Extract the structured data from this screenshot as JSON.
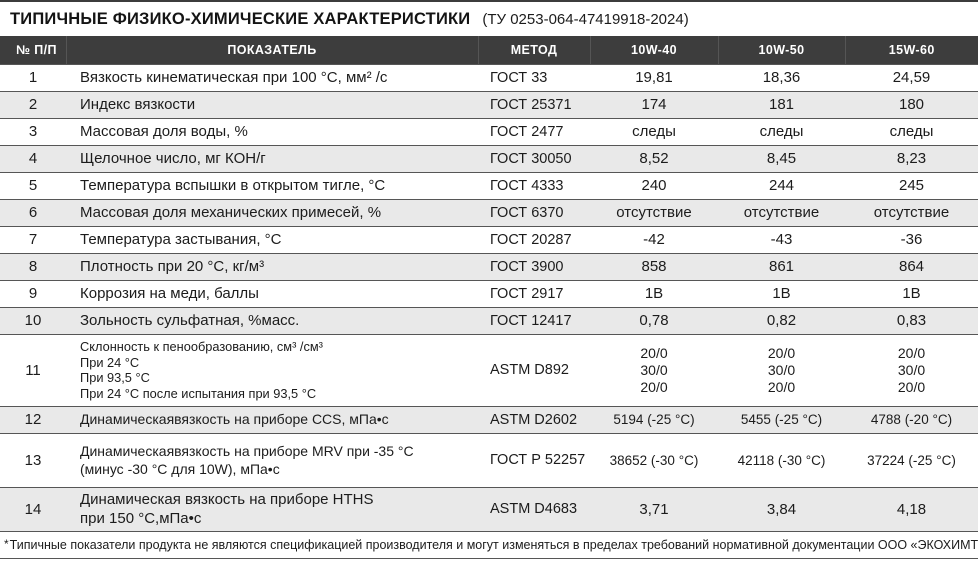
{
  "title": {
    "main": "ТИПИЧНЫЕ ФИЗИКО-ХИМИЧЕСКИЕ ХАРАКТЕРИСТИКИ",
    "tu": "(ТУ 0253-064-47419918-2024)"
  },
  "table": {
    "headers": [
      "№ П/П",
      "ПОКАЗАТЕЛЬ",
      "МЕТОД",
      "10W-40",
      "10W-50",
      "15W-60"
    ],
    "rows": [
      {
        "num": "1",
        "indicator": "Вязкость кинематическая при 100 °C, мм² /с",
        "method": "ГОСТ 33",
        "values": [
          "19,81",
          "18,36",
          "24,59"
        ]
      },
      {
        "num": "2",
        "indicator": "Индекс вязкости",
        "method": "ГОСТ 25371",
        "values": [
          "174",
          "181",
          "180"
        ]
      },
      {
        "num": "3",
        "indicator": "Массовая доля воды, %",
        "method": "ГОСТ 2477",
        "values": [
          "следы",
          "следы",
          "следы"
        ]
      },
      {
        "num": "4",
        "indicator": "Щелочное число, мг КОН/г",
        "method": "ГОСТ 30050",
        "values": [
          "8,52",
          "8,45",
          "8,23"
        ]
      },
      {
        "num": "5",
        "indicator": "Температура вспышки в открытом тигле, °C",
        "method": "ГОСТ 4333",
        "values": [
          "240",
          "244",
          "245"
        ]
      },
      {
        "num": "6",
        "indicator": "Массовая доля механических примесей, %",
        "method": "ГОСТ 6370",
        "values": [
          "отсутствие",
          "отсутствие",
          "отсутствие"
        ]
      },
      {
        "num": "7",
        "indicator": "Температура застывания, °C",
        "method": "ГОСТ 20287",
        "values": [
          "-42",
          "-43",
          "-36"
        ]
      },
      {
        "num": "8",
        "indicator": "Плотность при 20 °C, кг/м³",
        "method": "ГОСТ 3900",
        "values": [
          "858",
          "861",
          "864"
        ]
      },
      {
        "num": "9",
        "indicator": "Коррозия на меди, баллы",
        "method": "ГОСТ 2917",
        "values": [
          "1В",
          "1В",
          "1В"
        ]
      },
      {
        "num": "10",
        "indicator": "Зольность сульфатная, %масс.",
        "method": "ГОСТ 12417",
        "values": [
          "0,78",
          "0,82",
          "0,83"
        ]
      },
      {
        "num": "11",
        "indicator": "Склонность к пенообразованию, см³ /см³\nПри 24 °C\nПри 93,5 °C\nПри 24 °C после испытания при 93,5 °C",
        "method": "ASTM D892",
        "values": [
          "20/0\n30/0\n20/0",
          "20/0\n30/0\n20/0",
          "20/0\n30/0\n20/0"
        ]
      },
      {
        "num": "12",
        "indicator": "Динамическаявязкость на приборе CCS, мПа•с",
        "method": "ASTM D2602",
        "values": [
          "5194 (-25 °C)",
          "5455 (-25 °C)",
          "4788 (-20 °C)"
        ]
      },
      {
        "num": "13",
        "indicator": "Динамическаявязкость на приборе MRV при -35 °C\n(минус -30 °C для 10W), мПа•с",
        "method": "ГОСТ Р 52257",
        "values": [
          "38652 (-30 °C)",
          "42118 (-30 °C)",
          "37224 (-25 °C)"
        ]
      },
      {
        "num": "14",
        "indicator": "Динамическая вязкость на приборе HTHS\nпри 150 °C,мПа•с",
        "method": "ASTM D4683",
        "values": [
          "3,71",
          "3,84",
          "4,18"
        ]
      }
    ]
  },
  "footnote": {
    "asterisk": "*",
    "text": "Типичные показатели продукта не являются спецификацией производителя и могут изменяться в пределах требований нормативной документации ООО «ЭКОХИМТЕХ»"
  },
  "colors": {
    "header_bg": "#3d3d3d",
    "header_text": "#ffffff",
    "stripe": "#e9e9e9",
    "rule": "#565656",
    "text": "#1c1c1c"
  }
}
